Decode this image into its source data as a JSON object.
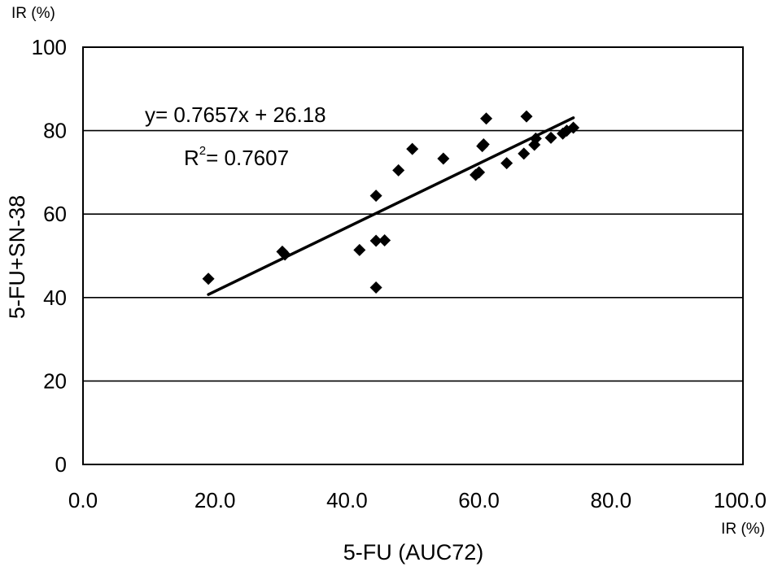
{
  "chart_data": {
    "type": "scatter",
    "xlabel": "5-FU (AUC72)",
    "ylabel": "5-FU+SN-38",
    "x_unit": "IR (%)",
    "y_unit": "IR (%)",
    "xlim": [
      0,
      100
    ],
    "ylim": [
      0,
      100
    ],
    "x_ticks": [
      "0.0",
      "20.0",
      "40.0",
      "60.0",
      "80.0",
      "100.0"
    ],
    "y_ticks": [
      "0",
      "20",
      "40",
      "60",
      "80",
      "100"
    ],
    "grid": "horizontal",
    "marker_color": "#000000",
    "points": [
      {
        "x": 19.0,
        "y": 44.5
      },
      {
        "x": 30.2,
        "y": 51.0
      },
      {
        "x": 30.6,
        "y": 50.3
      },
      {
        "x": 41.9,
        "y": 51.4
      },
      {
        "x": 44.4,
        "y": 64.4
      },
      {
        "x": 44.4,
        "y": 53.6
      },
      {
        "x": 44.4,
        "y": 42.4
      },
      {
        "x": 45.7,
        "y": 53.7
      },
      {
        "x": 47.8,
        "y": 70.5
      },
      {
        "x": 49.9,
        "y": 75.6
      },
      {
        "x": 54.6,
        "y": 73.3
      },
      {
        "x": 59.5,
        "y": 69.4
      },
      {
        "x": 60.0,
        "y": 70.0
      },
      {
        "x": 60.5,
        "y": 76.3
      },
      {
        "x": 60.7,
        "y": 76.7
      },
      {
        "x": 61.1,
        "y": 82.9
      },
      {
        "x": 64.2,
        "y": 72.2
      },
      {
        "x": 66.8,
        "y": 74.5
      },
      {
        "x": 67.2,
        "y": 83.4
      },
      {
        "x": 68.4,
        "y": 76.6
      },
      {
        "x": 68.6,
        "y": 78.1
      },
      {
        "x": 70.9,
        "y": 78.3
      },
      {
        "x": 72.7,
        "y": 79.3
      },
      {
        "x": 73.3,
        "y": 80.0
      },
      {
        "x": 74.3,
        "y": 80.7
      }
    ],
    "trendline": {
      "slope": 0.7657,
      "intercept": 26.18,
      "x_range": [
        19.0,
        74.3
      ],
      "equation": "y= 0.7657x + 26.18",
      "r2_label": "R",
      "r2_sup": "2",
      "r2_value": "= 0.7607"
    }
  }
}
